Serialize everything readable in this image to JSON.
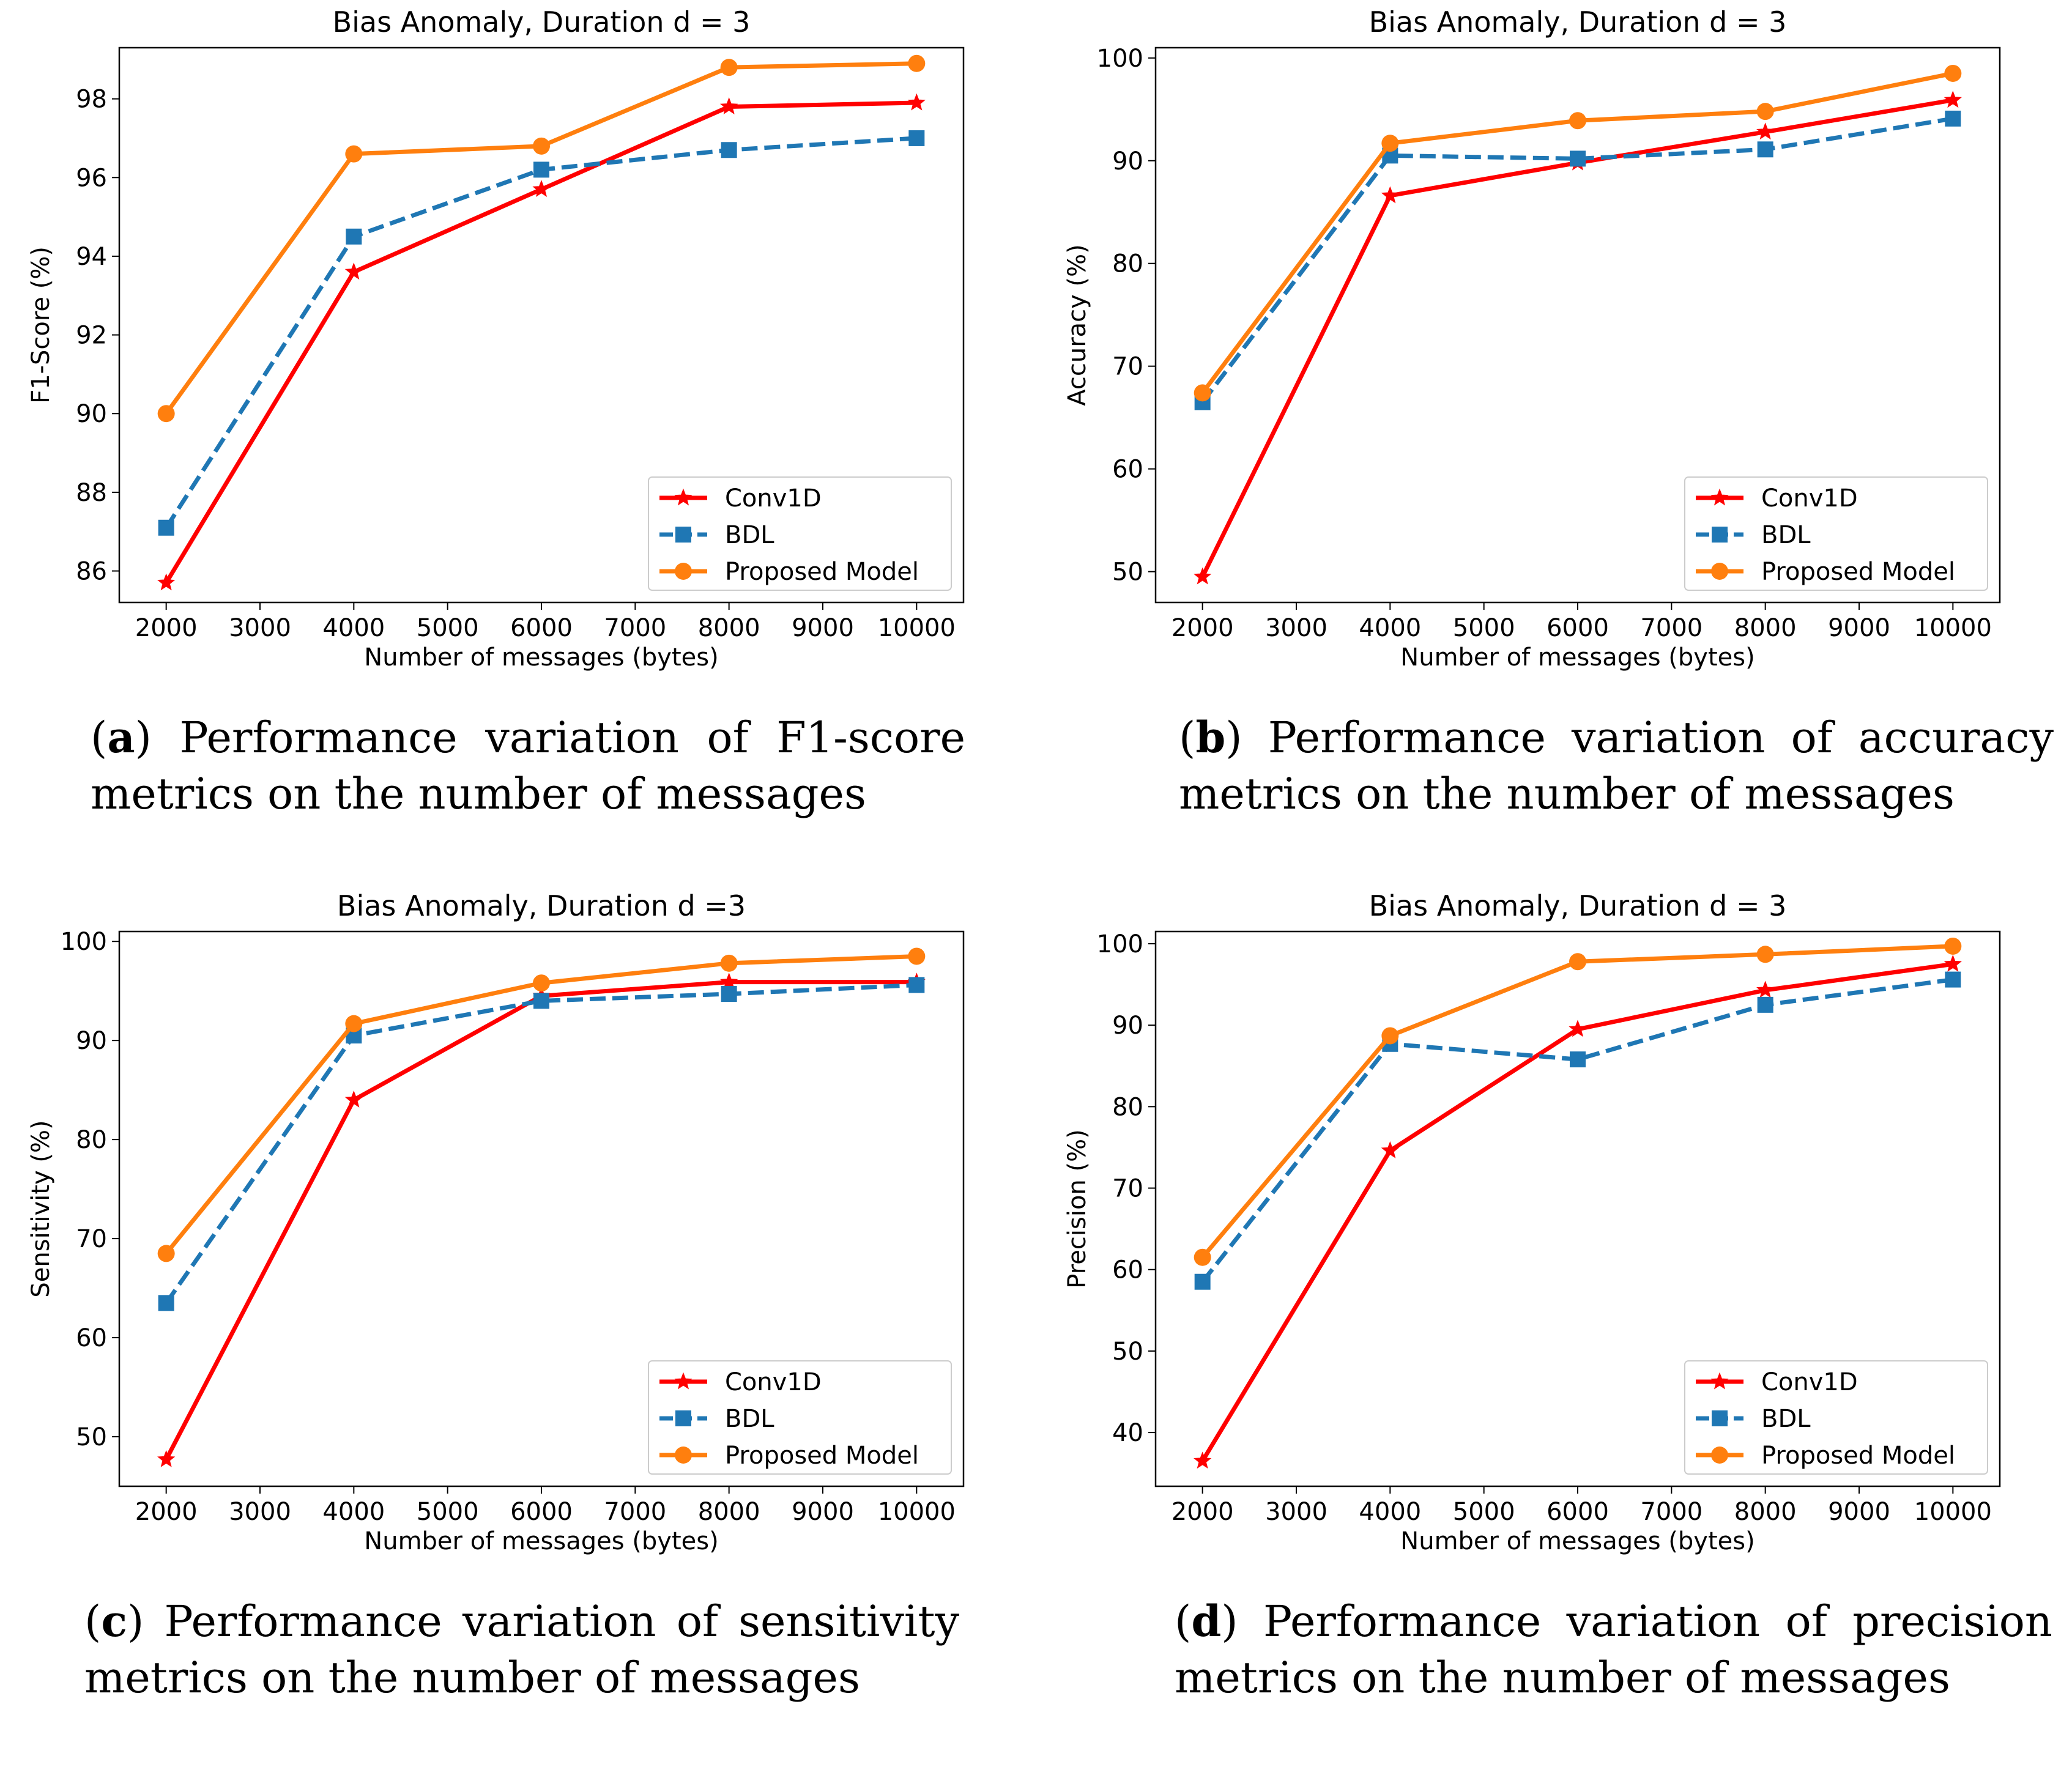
{
  "colors": {
    "conv1d": "#ff0000",
    "bdl": "#1f77b4",
    "proposed": "#ff7f0e"
  },
  "chart_data": [
    {
      "id": "a",
      "type": "line",
      "title": "Bias Anomaly, Duration d = 3",
      "xlabel": "Number of messages (bytes)",
      "ylabel": "F1-Score (%)",
      "xlim": [
        1500,
        10500
      ],
      "ylim": [
        85.2,
        99.3
      ],
      "xticks": [
        2000,
        3000,
        4000,
        5000,
        6000,
        7000,
        8000,
        9000,
        10000
      ],
      "yticks": [
        86,
        88,
        90,
        92,
        94,
        96,
        98
      ],
      "x": [
        2000,
        4000,
        6000,
        8000,
        10000
      ],
      "legend_position": "lower-right",
      "series": [
        {
          "name": "Conv1D",
          "key": "conv1d",
          "marker": "star",
          "dash": "solid",
          "values": [
            85.7,
            93.6,
            95.7,
            97.8,
            97.9
          ]
        },
        {
          "name": "BDL",
          "key": "bdl",
          "marker": "square",
          "dash": "dashed",
          "values": [
            87.1,
            94.5,
            96.2,
            96.7,
            97.0
          ]
        },
        {
          "name": "Proposed Model",
          "key": "proposed",
          "marker": "circle",
          "dash": "solid",
          "values": [
            90.0,
            96.6,
            96.8,
            98.8,
            98.9
          ]
        }
      ],
      "caption": {
        "letter": "a",
        "line1": "Performance variation of F1-score",
        "line2": "metrics on the number of messages"
      }
    },
    {
      "id": "b",
      "type": "line",
      "title": "Bias Anomaly, Duration d = 3",
      "xlabel": "Number of messages (bytes)",
      "ylabel": "Accuracy (%)",
      "xlim": [
        1500,
        10500
      ],
      "ylim": [
        47.0,
        101.0
      ],
      "xticks": [
        2000,
        3000,
        4000,
        5000,
        6000,
        7000,
        8000,
        9000,
        10000
      ],
      "yticks": [
        50,
        60,
        70,
        80,
        90,
        100
      ],
      "x": [
        2000,
        4000,
        6000,
        8000,
        10000
      ],
      "legend_position": "lower-right",
      "series": [
        {
          "name": "Conv1D",
          "key": "conv1d",
          "marker": "star",
          "dash": "solid",
          "values": [
            49.5,
            86.6,
            89.8,
            92.8,
            95.9
          ]
        },
        {
          "name": "BDL",
          "key": "bdl",
          "marker": "square",
          "dash": "dashed",
          "values": [
            66.5,
            90.5,
            90.2,
            91.1,
            94.1
          ]
        },
        {
          "name": "Proposed Model",
          "key": "proposed",
          "marker": "circle",
          "dash": "solid",
          "values": [
            67.4,
            91.7,
            93.9,
            94.8,
            98.5
          ]
        }
      ],
      "caption": {
        "letter": "b",
        "line1": "Performance variation of accuracy",
        "line2": "metrics on the number of messages"
      }
    },
    {
      "id": "c",
      "type": "line",
      "title": "Bias Anomaly, Duration d =3",
      "xlabel": "Number of messages (bytes)",
      "ylabel": "Sensitivity (%)",
      "xlim": [
        1500,
        10500
      ],
      "ylim": [
        45.0,
        101.0
      ],
      "xticks": [
        2000,
        3000,
        4000,
        5000,
        6000,
        7000,
        8000,
        9000,
        10000
      ],
      "yticks": [
        50,
        60,
        70,
        80,
        90,
        100
      ],
      "x": [
        2000,
        4000,
        6000,
        8000,
        10000
      ],
      "legend_position": "lower-right",
      "series": [
        {
          "name": "Conv1D",
          "key": "conv1d",
          "marker": "star",
          "dash": "solid",
          "values": [
            47.7,
            84.0,
            94.5,
            95.9,
            95.9
          ]
        },
        {
          "name": "BDL",
          "key": "bdl",
          "marker": "square",
          "dash": "dashed",
          "values": [
            63.5,
            90.5,
            94.0,
            94.7,
            95.6
          ]
        },
        {
          "name": "Proposed Model",
          "key": "proposed",
          "marker": "circle",
          "dash": "solid",
          "values": [
            68.5,
            91.7,
            95.8,
            97.8,
            98.5
          ]
        }
      ],
      "caption": {
        "letter": "c",
        "line1": "Performance variation of sensitivity",
        "line2": "metrics on the number of messages"
      }
    },
    {
      "id": "d",
      "type": "line",
      "title": "Bias Anomaly, Duration d = 3",
      "xlabel": "Number of messages (bytes)",
      "ylabel": "Precision (%)",
      "xlim": [
        1500,
        10500
      ],
      "ylim": [
        33.4,
        101.5
      ],
      "xticks": [
        2000,
        3000,
        4000,
        5000,
        6000,
        7000,
        8000,
        9000,
        10000
      ],
      "yticks": [
        40,
        50,
        60,
        70,
        80,
        90,
        100
      ],
      "x": [
        2000,
        4000,
        6000,
        8000,
        10000
      ],
      "legend_position": "lower-right",
      "series": [
        {
          "name": "Conv1D",
          "key": "conv1d",
          "marker": "star",
          "dash": "solid",
          "values": [
            36.5,
            74.6,
            89.5,
            94.3,
            97.5
          ]
        },
        {
          "name": "BDL",
          "key": "bdl",
          "marker": "square",
          "dash": "dashed",
          "values": [
            58.5,
            87.7,
            85.8,
            92.5,
            95.6
          ]
        },
        {
          "name": "Proposed Model",
          "key": "proposed",
          "marker": "circle",
          "dash": "solid",
          "values": [
            61.5,
            88.7,
            97.8,
            98.7,
            99.7
          ]
        }
      ],
      "caption": {
        "letter": "d",
        "line1": "Performance variation of precision",
        "line2": "metrics on the number of messages"
      }
    }
  ]
}
